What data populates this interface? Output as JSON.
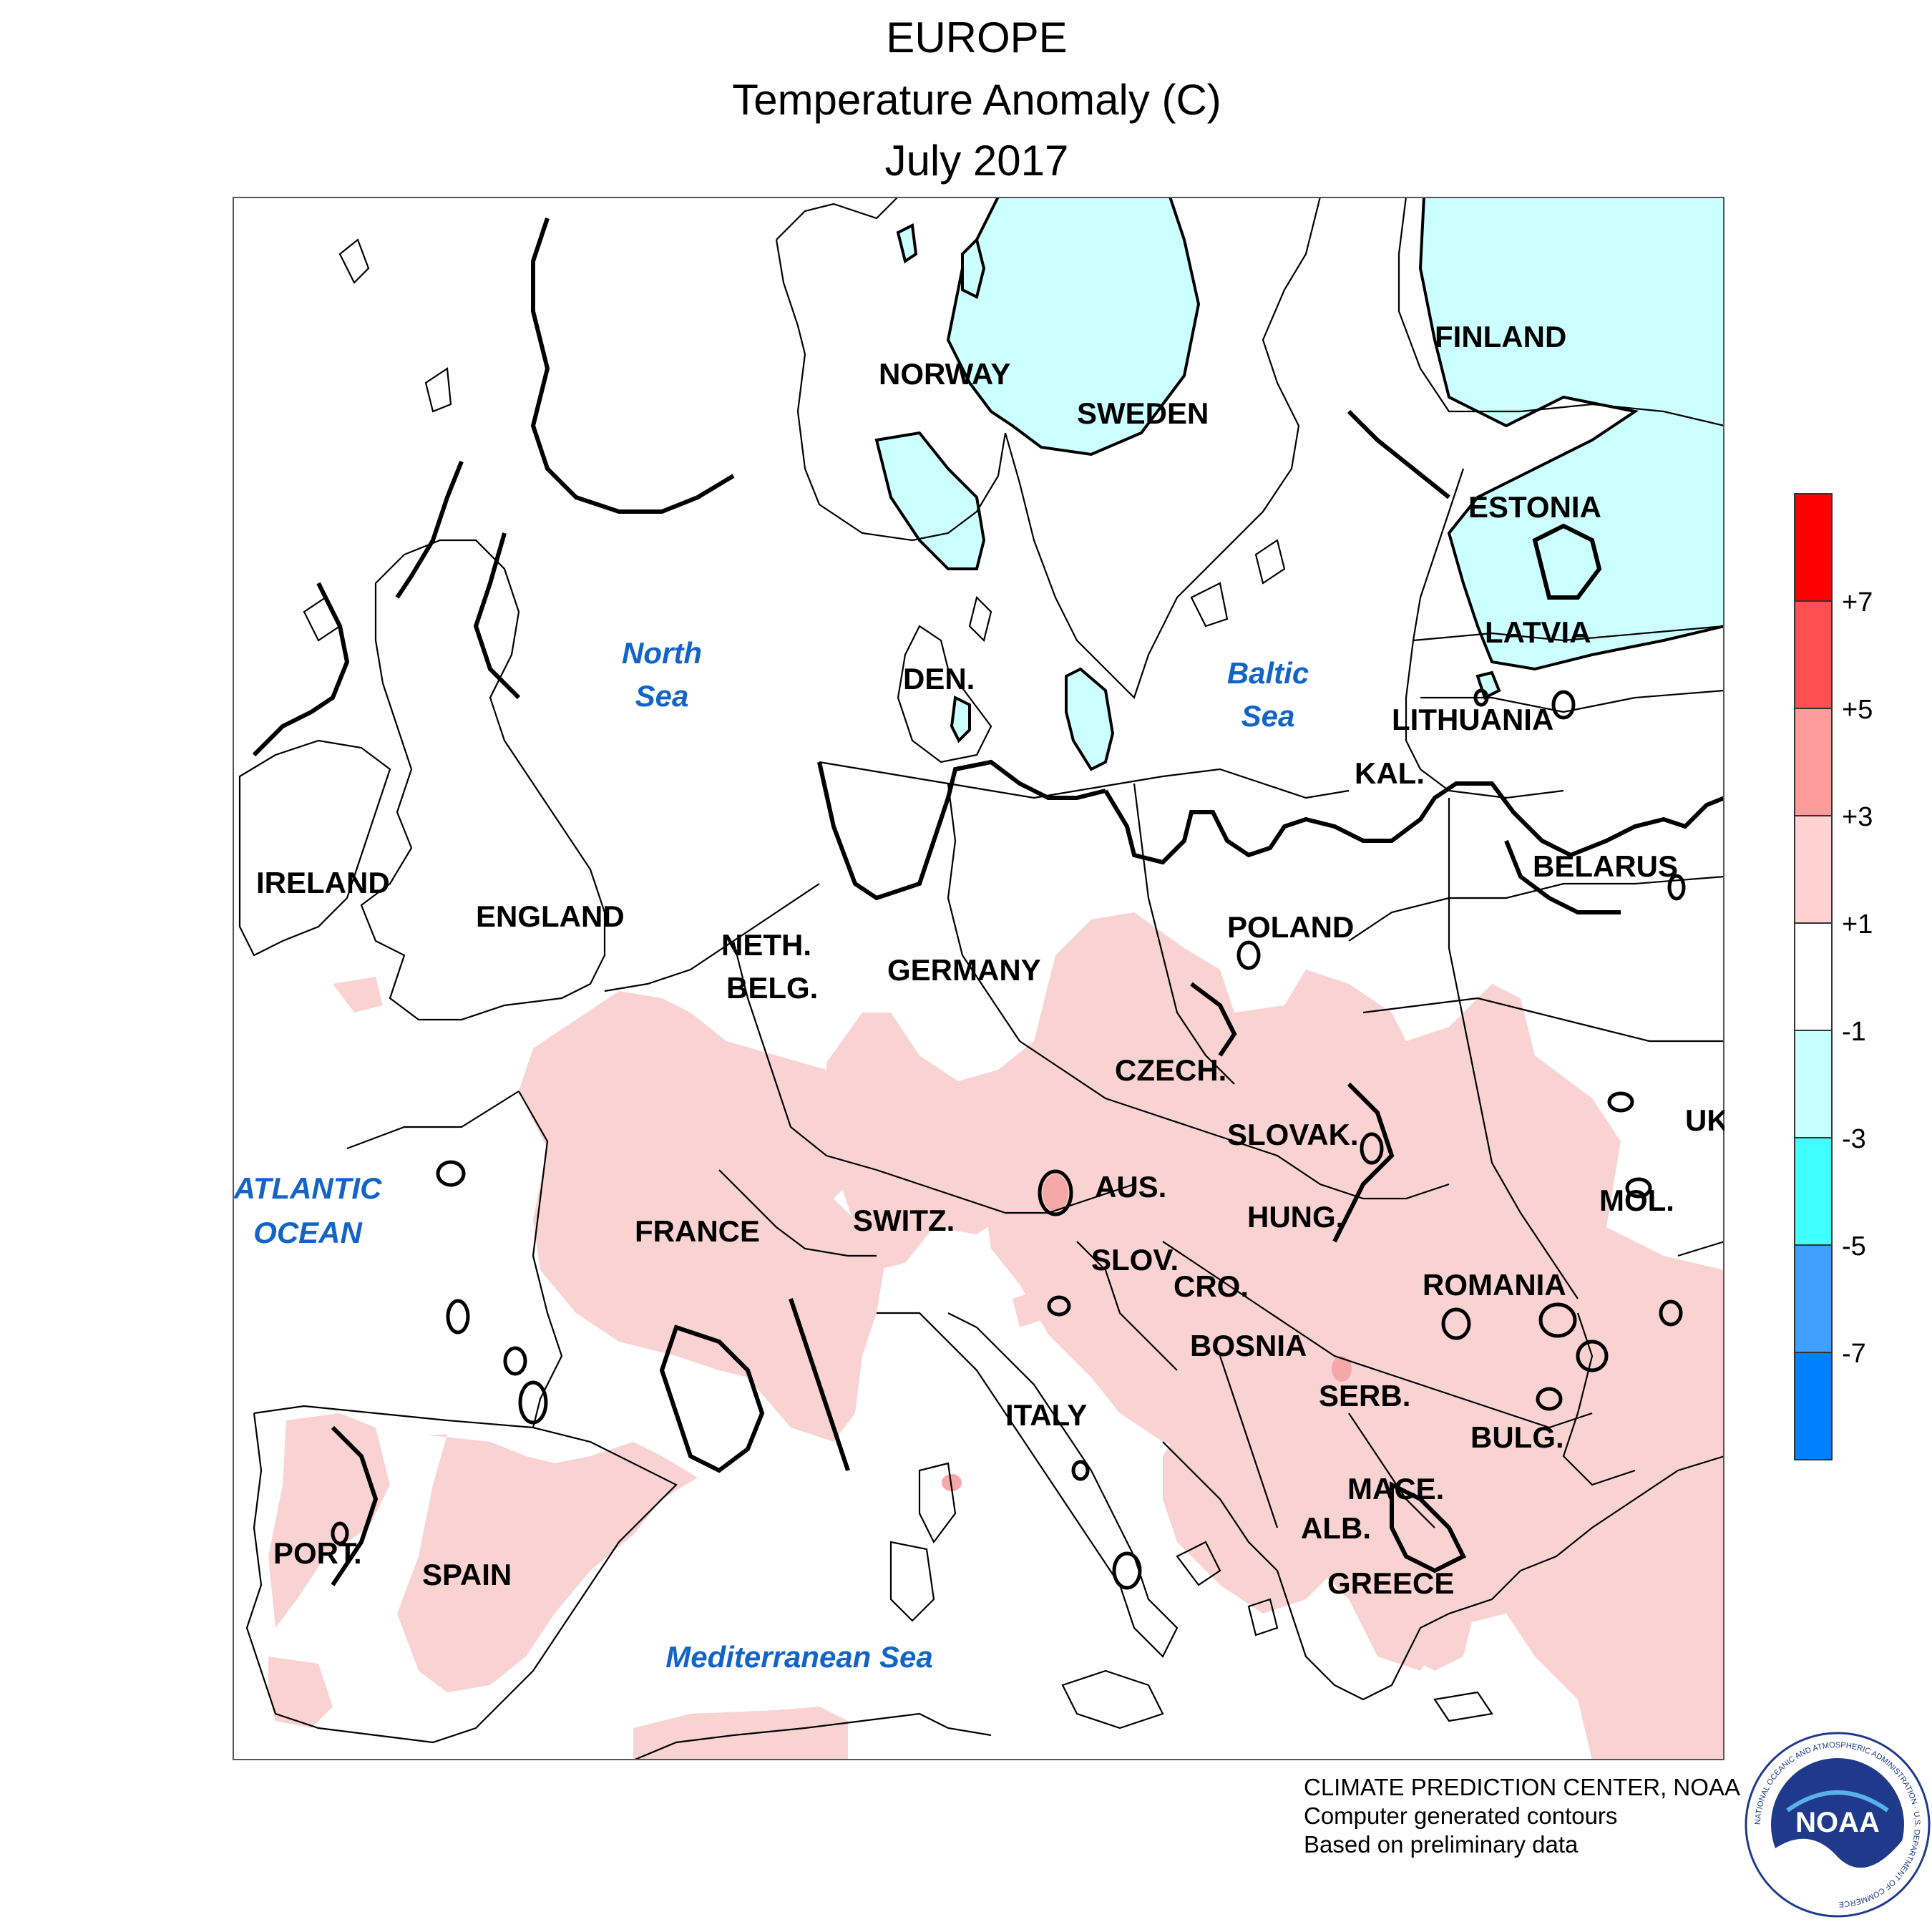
{
  "header": {
    "region": "EUROPE",
    "variable": "Temperature Anomaly (C)",
    "period": "July 2017"
  },
  "map": {
    "countries": [
      "NORWAY",
      "SWEDEN",
      "FINLAND",
      "ESTONIA",
      "LATVIA",
      "LITHUANIA",
      "KAL.",
      "BELARUS",
      "DEN.",
      "IRELAND",
      "ENGLAND",
      "NETH.",
      "BELG.",
      "GERMANY",
      "POLAND",
      "CZECH.",
      "SLOVAK.",
      "UK",
      "MOL.",
      "AUS.",
      "HUNG.",
      "FRANCE",
      "SWITZ.",
      "SLOV.",
      "CRO.",
      "ROMANIA",
      "BOSNIA",
      "SERB.",
      "BULG.",
      "ITALY",
      "MACE.",
      "ALB.",
      "GREECE",
      "PORT.",
      "SPAIN"
    ],
    "water_bodies": [
      "North",
      "Sea",
      "Baltic",
      "Sea",
      "ATLANTIC",
      "OCEAN",
      "Mediterranean Sea"
    ]
  },
  "legend": {
    "tick_labels": [
      "+7",
      "+5",
      "+3",
      "+1",
      "-1",
      "-3",
      "-5",
      "-7"
    ],
    "colors": [
      "#fe0000",
      "#fe5050",
      "#fe9c9c",
      "#ffd2d2",
      "#ffffff",
      "#c8ffff",
      "#40ffff",
      "#40a0ff",
      "#0080ff"
    ]
  },
  "anomaly_fill_colors": {
    "warm_1_to_3": "#f9d2d2",
    "cool_minus1_to_minus3": "#ccffff"
  },
  "credits": {
    "line1": "CLIMATE PREDICTION CENTER, NOAA",
    "line2": "Computer generated contours",
    "line3": "Based on preliminary data"
  },
  "logo": {
    "center_text": "NOAA",
    "ring_text": "NATIONAL OCEANIC AND ATMOSPHERIC ADMINISTRATION · U.S. DEPARTMENT OF COMMERCE"
  }
}
